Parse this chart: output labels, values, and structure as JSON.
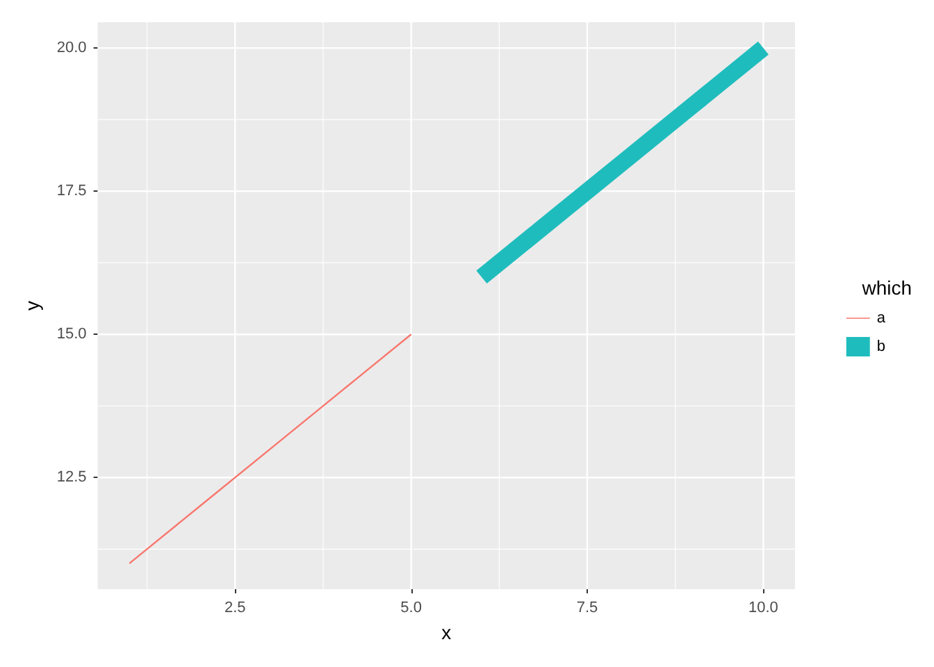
{
  "chart_data": {
    "type": "line",
    "xlabel": "x",
    "ylabel": "y",
    "legend_title": "which",
    "legend": "right",
    "grid": true,
    "marker": "none",
    "line_style": "solid",
    "xlim": [
      0.55,
      10.45
    ],
    "xticks": [
      2.5,
      {
        "value": 5,
        "label": "5.0"
      },
      7.5,
      {
        "value": 10,
        "label": "10.0"
      }
    ],
    "ylim": [
      10.55,
      20.45
    ],
    "yticks": [
      12.5,
      {
        "value": 15,
        "label": "15.0"
      },
      17.5,
      {
        "value": 20,
        "label": "20.0"
      }
    ],
    "series": [
      {
        "name": "a",
        "color": "#f8766d",
        "x": [
          1,
          2,
          3,
          4,
          5
        ],
        "values": [
          11,
          12,
          13,
          14,
          15
        ]
      },
      {
        "name": "b",
        "color": "#1fbcbd",
        "x": [
          6,
          7,
          8,
          9,
          10
        ],
        "values": [
          16,
          17,
          18,
          19,
          20
        ]
      }
    ]
  }
}
